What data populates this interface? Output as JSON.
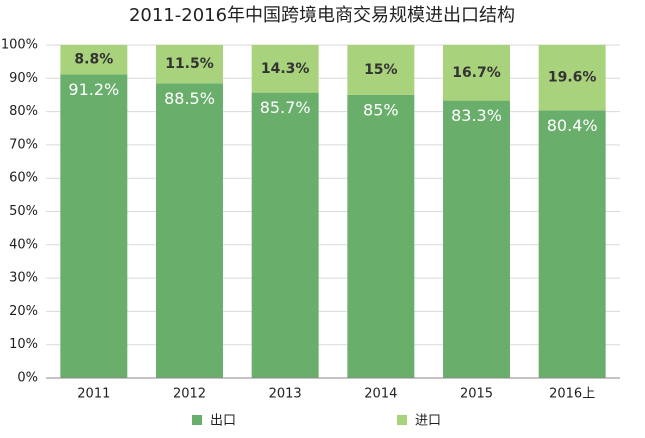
{
  "chart_data": {
    "type": "stacked_bar",
    "title": "2011-2016年中国跨境电商交易规模进出口结构",
    "categories": [
      "2011",
      "2012",
      "2013",
      "2014",
      "2015",
      "2016上"
    ],
    "series": [
      {
        "name": "出口",
        "color": "#6aae6c",
        "values": [
          91.2,
          88.5,
          85.7,
          85,
          83.3,
          80.4
        ],
        "value_labels": [
          "91.2%",
          "88.5%",
          "85.7%",
          "85%",
          "83.3%",
          "80.4%"
        ]
      },
      {
        "name": "进口",
        "color": "#a9d27c",
        "values": [
          8.8,
          11.5,
          14.3,
          15,
          16.7,
          19.6
        ],
        "value_labels": [
          "8.8%",
          "11.5%",
          "14.3%",
          "15%",
          "16.7%",
          "19.6%"
        ]
      }
    ],
    "ylim": [
      0,
      100
    ],
    "yticks": [
      {
        "value": 0,
        "label": "0%"
      },
      {
        "value": 10,
        "label": "10%"
      },
      {
        "value": 20,
        "label": "20%"
      },
      {
        "value": 30,
        "label": "30%"
      },
      {
        "value": 40,
        "label": "40%"
      },
      {
        "value": 50,
        "label": "50%"
      },
      {
        "value": 60,
        "label": "60%"
      },
      {
        "value": 70,
        "label": "70%"
      },
      {
        "value": 80,
        "label": "80%"
      },
      {
        "value": 90,
        "label": "90%"
      },
      {
        "value": 100,
        "label": "100%"
      }
    ],
    "grid": true
  }
}
